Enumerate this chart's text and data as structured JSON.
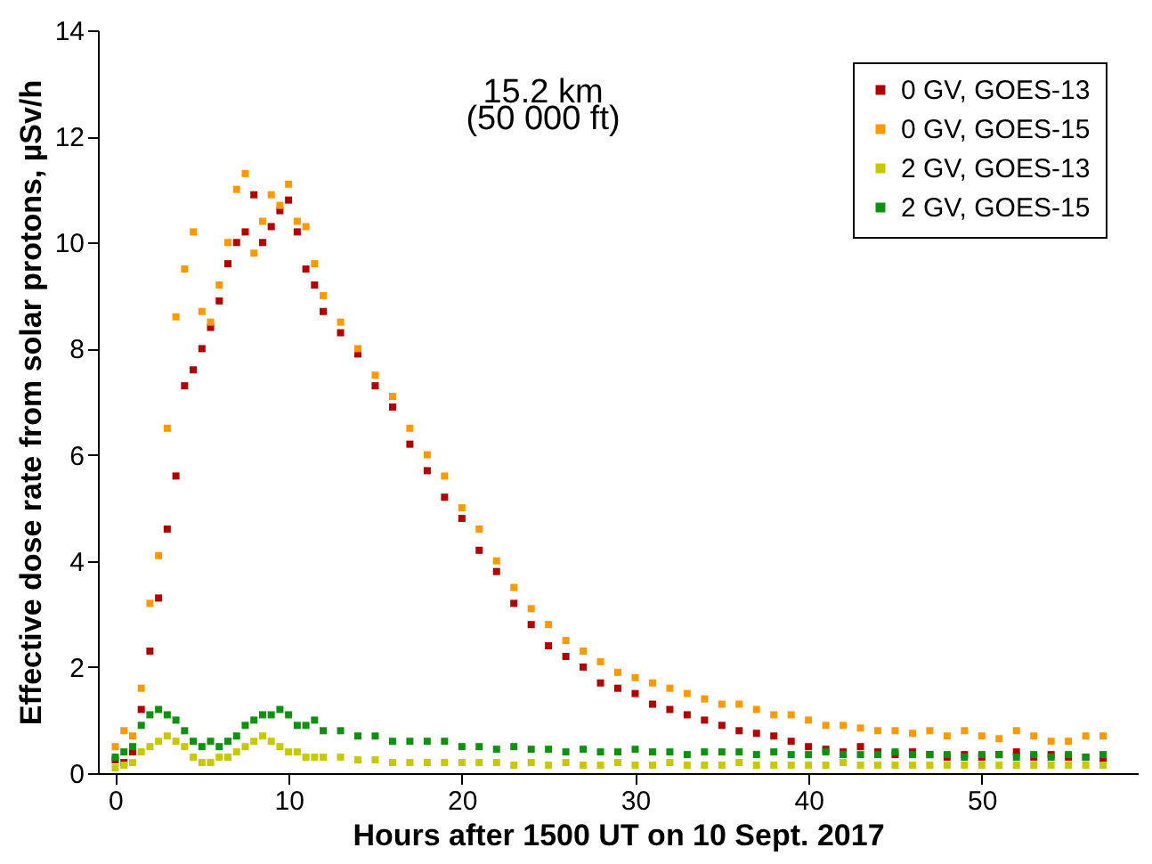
{
  "chart_data": {
    "type": "scatter",
    "xlabel": "Hours after 1500 UT on 10 Sept. 2017",
    "ylabel": "Effective dose rate from solar protons, µSv/h",
    "annotations": [
      "15.2 km",
      "(50 000 ft)"
    ],
    "x": [
      0,
      0.5,
      1,
      1.5,
      2,
      2.5,
      3,
      3.5,
      4,
      4.5,
      5,
      5.5,
      6,
      6.5,
      7,
      7.5,
      8,
      8.5,
      9,
      9.5,
      10,
      10.5,
      11,
      11.5,
      12,
      13,
      14,
      15,
      16,
      17,
      18,
      19,
      20,
      21,
      22,
      23,
      24,
      25,
      26,
      27,
      28,
      29,
      30,
      31,
      32,
      33,
      34,
      35,
      36,
      37,
      38,
      39,
      40,
      41,
      42,
      43,
      44,
      45,
      46,
      47,
      48,
      49,
      50,
      51,
      52,
      53,
      54,
      55,
      56,
      57
    ],
    "series": [
      {
        "name": "0 GV, GOES-13",
        "color": "#b00000",
        "values": [
          0.25,
          0.2,
          0.4,
          1.2,
          2.3,
          3.3,
          4.6,
          5.6,
          7.3,
          7.6,
          8.0,
          8.4,
          8.9,
          9.6,
          10.0,
          10.2,
          10.9,
          10.0,
          10.3,
          10.6,
          10.8,
          10.2,
          9.5,
          9.2,
          8.7,
          8.3,
          7.9,
          7.3,
          6.9,
          6.2,
          5.7,
          5.2,
          4.8,
          4.2,
          3.8,
          3.2,
          2.8,
          2.4,
          2.2,
          2.0,
          1.7,
          1.6,
          1.5,
          1.3,
          1.2,
          1.1,
          1.0,
          0.9,
          0.8,
          0.75,
          0.7,
          0.6,
          0.5,
          0.45,
          0.4,
          0.5,
          0.4,
          0.35,
          0.4,
          0.35,
          0.3,
          0.35,
          0.3,
          0.35,
          0.4,
          0.3,
          0.35,
          0.3,
          0.3,
          0.25
        ]
      },
      {
        "name": "0 GV, GOES-15",
        "color": "#ff9900",
        "values": [
          0.5,
          0.8,
          0.7,
          1.6,
          3.2,
          4.1,
          6.5,
          8.6,
          9.5,
          10.2,
          8.7,
          8.5,
          9.2,
          10.0,
          11.0,
          11.3,
          9.8,
          10.4,
          10.9,
          10.7,
          11.1,
          10.4,
          10.3,
          9.6,
          9.0,
          8.5,
          8.0,
          7.5,
          7.1,
          6.5,
          6.0,
          5.6,
          5.0,
          4.6,
          4.0,
          3.5,
          3.1,
          2.8,
          2.5,
          2.3,
          2.1,
          1.9,
          1.8,
          1.7,
          1.6,
          1.5,
          1.4,
          1.3,
          1.3,
          1.2,
          1.1,
          1.1,
          1.0,
          0.9,
          0.9,
          0.85,
          0.8,
          0.8,
          0.75,
          0.8,
          0.7,
          0.8,
          0.7,
          0.65,
          0.8,
          0.7,
          0.6,
          0.6,
          0.7,
          0.7
        ]
      },
      {
        "name": "2 GV, GOES-13",
        "color": "#c8c800",
        "values": [
          0.1,
          0.15,
          0.2,
          0.4,
          0.5,
          0.6,
          0.7,
          0.6,
          0.5,
          0.3,
          0.2,
          0.2,
          0.3,
          0.3,
          0.4,
          0.5,
          0.6,
          0.7,
          0.6,
          0.5,
          0.4,
          0.4,
          0.3,
          0.3,
          0.3,
          0.3,
          0.25,
          0.25,
          0.2,
          0.2,
          0.2,
          0.2,
          0.2,
          0.2,
          0.2,
          0.15,
          0.2,
          0.15,
          0.2,
          0.15,
          0.15,
          0.2,
          0.15,
          0.15,
          0.2,
          0.15,
          0.15,
          0.15,
          0.2,
          0.15,
          0.15,
          0.15,
          0.15,
          0.15,
          0.2,
          0.15,
          0.15,
          0.15,
          0.15,
          0.15,
          0.15,
          0.15,
          0.15,
          0.15,
          0.15,
          0.15,
          0.15,
          0.15,
          0.15,
          0.15
        ]
      },
      {
        "name": "2 GV, GOES-15",
        "color": "#109010",
        "values": [
          0.3,
          0.4,
          0.5,
          0.9,
          1.1,
          1.2,
          1.1,
          1.0,
          0.8,
          0.6,
          0.5,
          0.6,
          0.5,
          0.6,
          0.7,
          0.9,
          1.0,
          1.1,
          1.1,
          1.2,
          1.1,
          0.9,
          0.9,
          1.0,
          0.8,
          0.8,
          0.7,
          0.7,
          0.6,
          0.6,
          0.6,
          0.6,
          0.5,
          0.5,
          0.45,
          0.5,
          0.45,
          0.45,
          0.4,
          0.45,
          0.4,
          0.4,
          0.45,
          0.4,
          0.4,
          0.35,
          0.4,
          0.4,
          0.4,
          0.35,
          0.4,
          0.35,
          0.35,
          0.4,
          0.35,
          0.35,
          0.35,
          0.4,
          0.35,
          0.35,
          0.35,
          0.3,
          0.35,
          0.35,
          0.3,
          0.35,
          0.3,
          0.35,
          0.3,
          0.35
        ]
      }
    ],
    "xlim": [
      -1,
      59
    ],
    "xticks": [
      0,
      10,
      20,
      30,
      40,
      50
    ],
    "ylim": [
      0,
      14
    ],
    "yticks": [
      0,
      2,
      4,
      6,
      8,
      10,
      12,
      14
    ],
    "marker": "square",
    "grid": false,
    "legend": "top right"
  }
}
